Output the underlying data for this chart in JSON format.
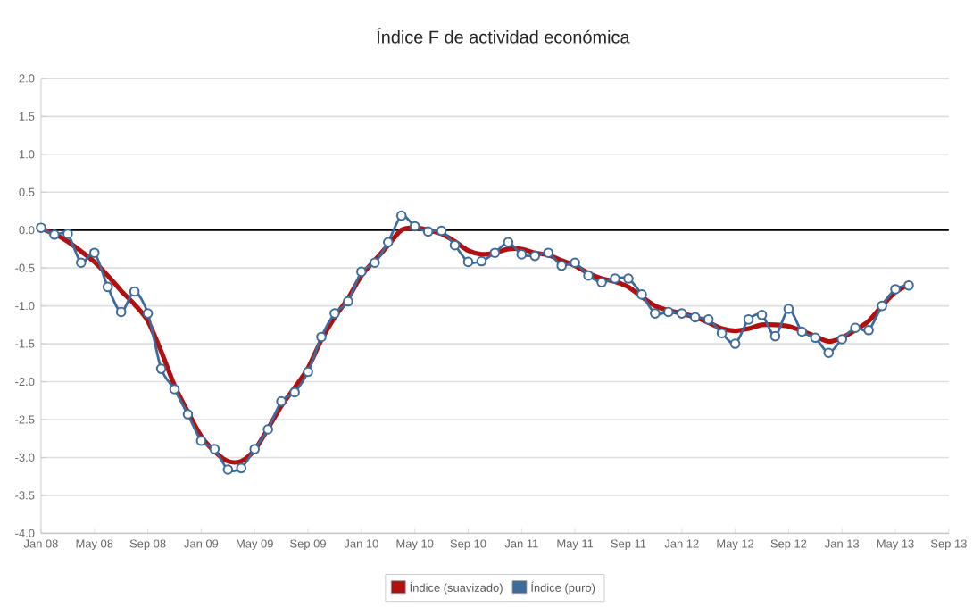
{
  "chart_data": {
    "type": "line",
    "title": "Índice F de actividad económica",
    "x": [
      "2008-01",
      "2008-02",
      "2008-03",
      "2008-04",
      "2008-05",
      "2008-06",
      "2008-07",
      "2008-08",
      "2008-09",
      "2008-10",
      "2008-11",
      "2008-12",
      "2009-01",
      "2009-02",
      "2009-03",
      "2009-04",
      "2009-05",
      "2009-06",
      "2009-07",
      "2009-08",
      "2009-09",
      "2009-10",
      "2009-11",
      "2009-12",
      "2010-01",
      "2010-02",
      "2010-03",
      "2010-04",
      "2010-05",
      "2010-06",
      "2010-07",
      "2010-08",
      "2010-09",
      "2010-10",
      "2010-11",
      "2010-12",
      "2011-01",
      "2011-02",
      "2011-03",
      "2011-04",
      "2011-05",
      "2011-06",
      "2011-07",
      "2011-08",
      "2011-09",
      "2011-10",
      "2011-11",
      "2011-12",
      "2012-01",
      "2012-02",
      "2012-03",
      "2012-04",
      "2012-05",
      "2012-06",
      "2012-07",
      "2012-08",
      "2012-09",
      "2012-10",
      "2012-11",
      "2012-12",
      "2013-01",
      "2013-02",
      "2013-03",
      "2013-04",
      "2013-05",
      "2013-06"
    ],
    "series": [
      {
        "name": "Índice (suavizado)",
        "color": "#b01010",
        "marker": "none",
        "values": [
          0.02,
          -0.05,
          -0.15,
          -0.28,
          -0.42,
          -0.6,
          -0.8,
          -0.98,
          -1.2,
          -1.6,
          -2.05,
          -2.4,
          -2.72,
          -2.92,
          -3.05,
          -3.05,
          -2.9,
          -2.62,
          -2.32,
          -2.08,
          -1.82,
          -1.45,
          -1.15,
          -0.9,
          -0.6,
          -0.4,
          -0.2,
          0.0,
          0.03,
          0.0,
          -0.05,
          -0.15,
          -0.27,
          -0.32,
          -0.3,
          -0.25,
          -0.25,
          -0.3,
          -0.33,
          -0.4,
          -0.47,
          -0.57,
          -0.64,
          -0.68,
          -0.75,
          -0.88,
          -1.0,
          -1.06,
          -1.1,
          -1.15,
          -1.22,
          -1.3,
          -1.33,
          -1.3,
          -1.25,
          -1.25,
          -1.27,
          -1.33,
          -1.4,
          -1.47,
          -1.42,
          -1.32,
          -1.2,
          -1.0,
          -0.82,
          -0.72
        ]
      },
      {
        "name": "Índice (puro)",
        "color": "#3d6b9c",
        "marker": "circle",
        "values": [
          0.03,
          -0.06,
          -0.05,
          -0.43,
          -0.3,
          -0.75,
          -1.08,
          -0.81,
          -1.1,
          -1.83,
          -2.1,
          -2.43,
          -2.78,
          -2.89,
          -3.16,
          -3.14,
          -2.89,
          -2.63,
          -2.26,
          -2.14,
          -1.87,
          -1.41,
          -1.1,
          -0.94,
          -0.55,
          -0.43,
          -0.16,
          0.19,
          0.05,
          -0.02,
          -0.01,
          -0.2,
          -0.42,
          -0.41,
          -0.3,
          -0.16,
          -0.32,
          -0.34,
          -0.3,
          -0.47,
          -0.43,
          -0.6,
          -0.69,
          -0.64,
          -0.64,
          -0.85,
          -1.1,
          -1.08,
          -1.1,
          -1.15,
          -1.18,
          -1.36,
          -1.5,
          -1.18,
          -1.12,
          -1.4,
          -1.04,
          -1.34,
          -1.42,
          -1.62,
          -1.44,
          -1.29,
          -1.32,
          -1.0,
          -0.78,
          -0.73
        ]
      }
    ],
    "xlim": [
      "2008-01",
      "2013-09"
    ],
    "xticks": [
      {
        "value": "2008-01",
        "label": "Jan 08"
      },
      {
        "value": "2008-05",
        "label": "May 08"
      },
      {
        "value": "2008-09",
        "label": "Sep 08"
      },
      {
        "value": "2009-01",
        "label": "Jan 09"
      },
      {
        "value": "2009-05",
        "label": "May 09"
      },
      {
        "value": "2009-09",
        "label": "Sep 09"
      },
      {
        "value": "2010-01",
        "label": "Jan 10"
      },
      {
        "value": "2010-05",
        "label": "May 10"
      },
      {
        "value": "2010-09",
        "label": "Sep 10"
      },
      {
        "value": "2011-01",
        "label": "Jan 11"
      },
      {
        "value": "2011-05",
        "label": "May 11"
      },
      {
        "value": "2011-09",
        "label": "Sep 11"
      },
      {
        "value": "2012-01",
        "label": "Jan 12"
      },
      {
        "value": "2012-05",
        "label": "May 12"
      },
      {
        "value": "2012-09",
        "label": "Sep 12"
      },
      {
        "value": "2013-01",
        "label": "Jan 13"
      },
      {
        "value": "2013-05",
        "label": "May 13"
      },
      {
        "value": "2013-09",
        "label": "Sep 13"
      }
    ],
    "ylim": [
      -4.0,
      2.0
    ],
    "yticks": [
      {
        "value": -4,
        "label": "-4.0"
      },
      {
        "value": -3.5,
        "label": "-3.5"
      },
      {
        "value": -3,
        "label": "-3.0"
      },
      {
        "value": -2.5,
        "label": "-2.5"
      },
      {
        "value": -2,
        "label": "-2.0"
      },
      {
        "value": -1.5,
        "label": "-1.5"
      },
      {
        "value": -1,
        "label": "-1.0"
      },
      {
        "value": -0.5,
        "label": "-0.5"
      },
      {
        "value": 0,
        "label": "0.0"
      },
      {
        "value": 0.5,
        "label": "0.5"
      },
      {
        "value": 1,
        "label": "1.0"
      },
      {
        "value": 1.5,
        "label": "1.5"
      },
      {
        "value": 2,
        "label": "2.0"
      }
    ],
    "ref_lines": [
      {
        "axis": "y",
        "value": 0,
        "color": "#000000"
      }
    ],
    "grid": "y",
    "legend": "bottom",
    "line_style": "solid"
  }
}
